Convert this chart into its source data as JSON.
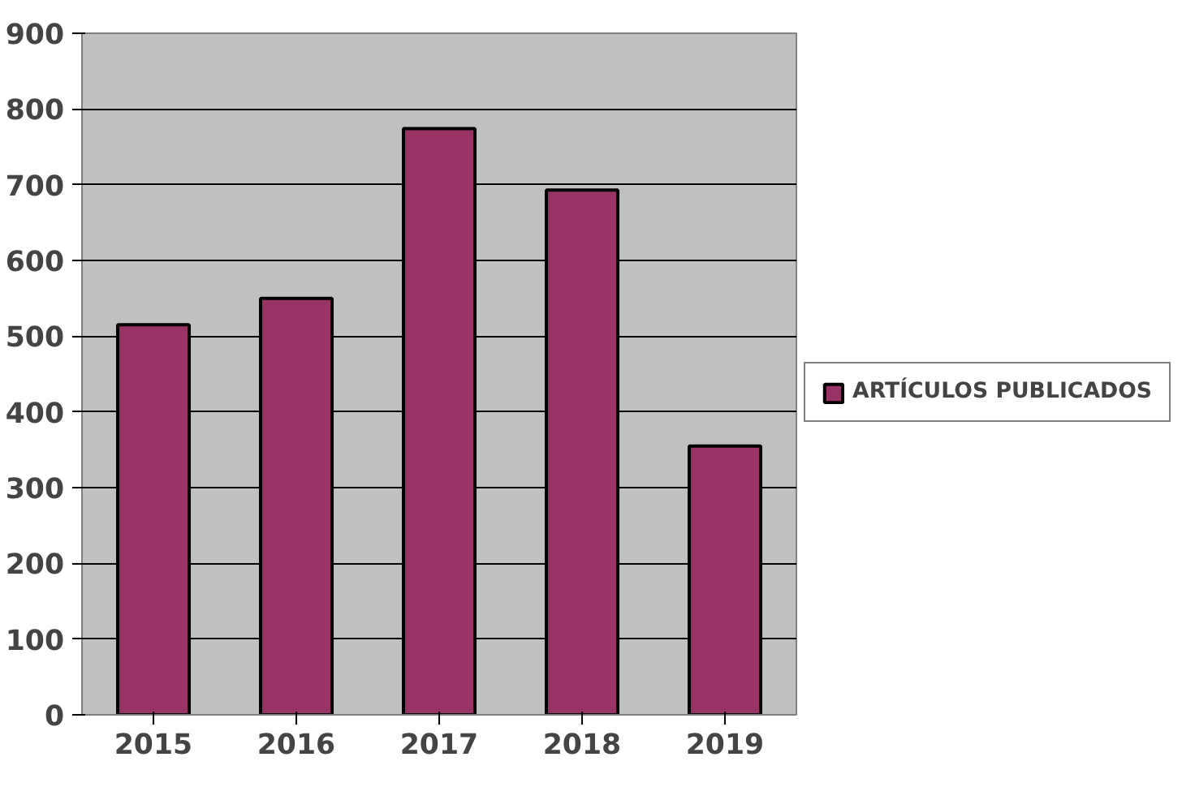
{
  "chart_data": {
    "type": "bar",
    "categories": [
      "2015",
      "2016",
      "2017",
      "2018",
      "2019"
    ],
    "series": [
      {
        "name": "ARTÍCULOS PUBLICADOS",
        "color": "#993366",
        "values": [
          515,
          550,
          774,
          693,
          355
        ]
      }
    ],
    "ylim": [
      0,
      900
    ],
    "yticks": [
      0,
      100,
      200,
      300,
      400,
      500,
      600,
      700,
      800,
      900
    ],
    "grid": "y",
    "legend": "right"
  }
}
